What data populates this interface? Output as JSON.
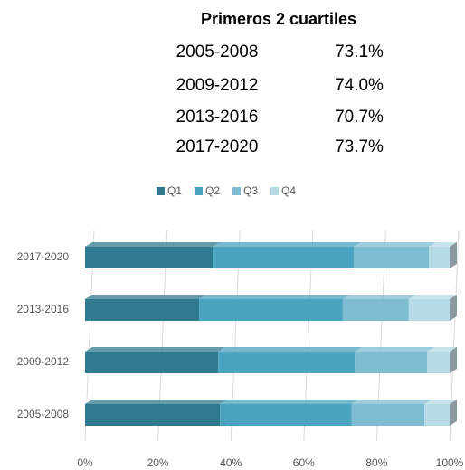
{
  "summary": {
    "title": "Primeros 2 cuartiles",
    "rows": [
      [
        "2005-2008",
        "73.1%"
      ],
      [
        "2009-2012",
        "74.0%"
      ],
      [
        "2013-2016",
        "70.7%"
      ],
      [
        "2017-2020",
        "73.7%"
      ]
    ]
  },
  "chart_data": {
    "type": "stacked_bar_horizontal",
    "categories": [
      "2005-2008",
      "2009-2012",
      "2013-2016",
      "2017-2020"
    ],
    "series": [
      {
        "name": "Q1",
        "color": "#31798f",
        "values": [
          37.0,
          36.5,
          31.3,
          35.0
        ]
      },
      {
        "name": "Q2",
        "color": "#4aa3bf",
        "values": [
          36.1,
          37.5,
          39.4,
          38.7
        ]
      },
      {
        "name": "Q3",
        "color": "#7dbcd1",
        "values": [
          20.0,
          19.8,
          18.1,
          20.6
        ]
      },
      {
        "name": "Q4",
        "color": "#b6dae6",
        "values": [
          6.9,
          6.2,
          11.2,
          5.7
        ]
      }
    ],
    "xlim": [
      0,
      100
    ],
    "xticks": [
      {
        "value": 0,
        "label": "0%"
      },
      {
        "value": 20,
        "label": "20%"
      },
      {
        "value": 40,
        "label": "40%"
      },
      {
        "value": 60,
        "label": "60%"
      },
      {
        "value": 80,
        "label": "80%"
      },
      {
        "value": 100,
        "label": "100%"
      }
    ],
    "grid": true,
    "legend": "top"
  }
}
